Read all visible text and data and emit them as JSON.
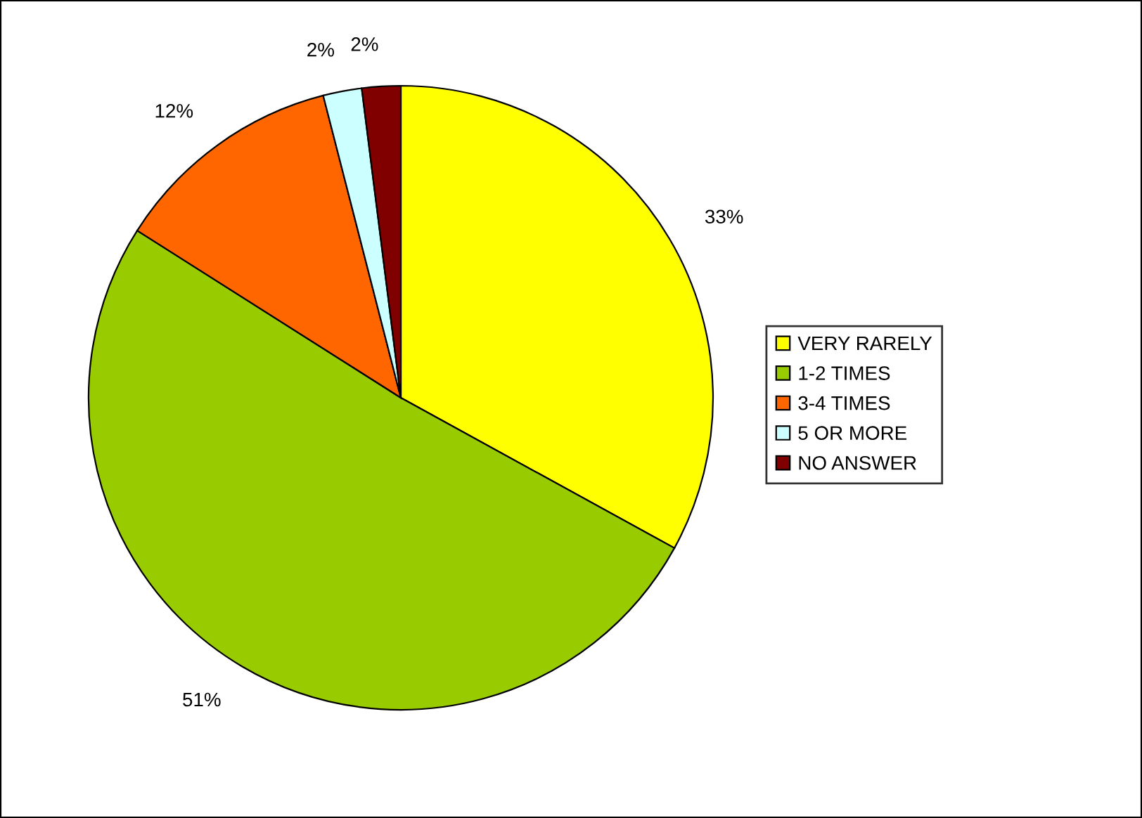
{
  "chart_data": {
    "type": "pie",
    "categories": [
      "VERY RARELY",
      "1-2 TIMES",
      "3-4 TIMES",
      "5 OR MORE",
      "NO ANSWER"
    ],
    "values": [
      33,
      51,
      12,
      2,
      2
    ],
    "colors": [
      "#ffff00",
      "#99cc00",
      "#ff6600",
      "#ccffff",
      "#800000"
    ],
    "value_labels": [
      "33%",
      "51%",
      "12%",
      "2%",
      "2%"
    ],
    "legend": "right"
  }
}
